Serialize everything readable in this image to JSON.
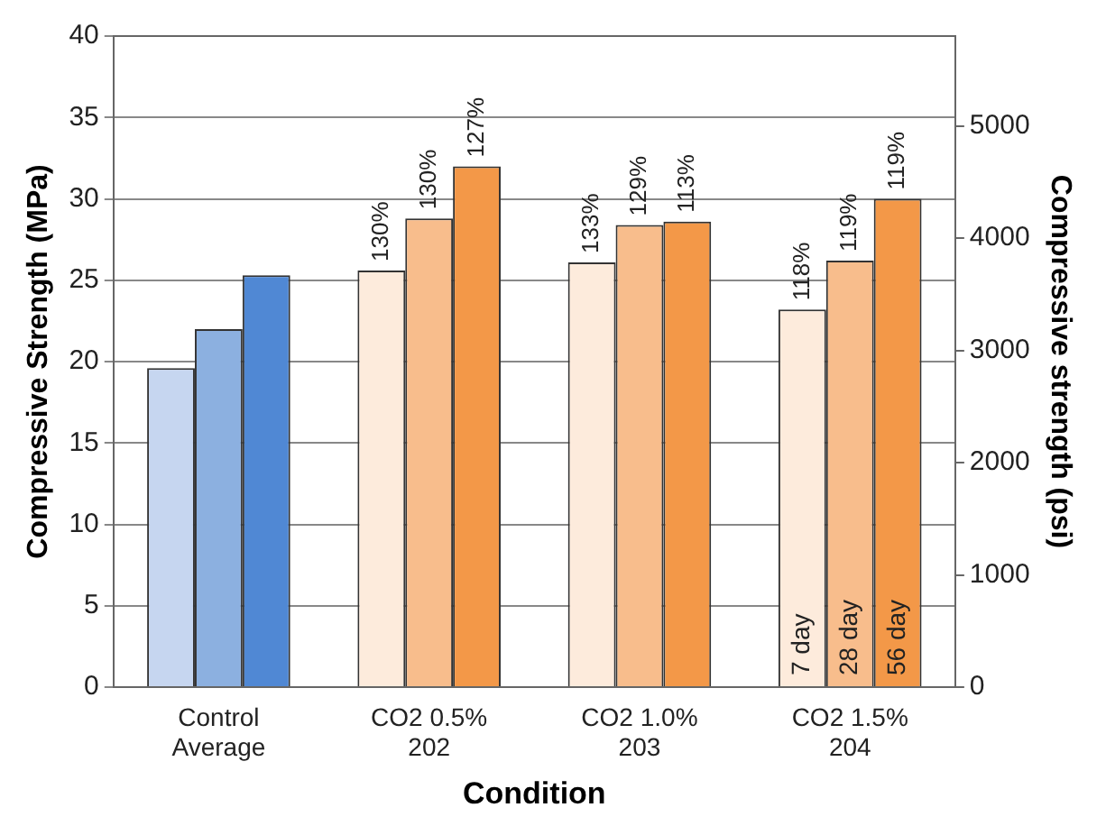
{
  "chart_data": {
    "type": "bar",
    "xlabel": "Condition",
    "ylabel": "Compressive Strength (MPa)",
    "y2label": "Compressive strength (psi)",
    "categories": [
      "Control Average",
      "CO2 0.5% 202",
      "CO2 1.0% 203",
      "CO2 1.5% 204"
    ],
    "series": [
      {
        "name": "7 day",
        "colors": [
          "#c6d6f0",
          "#fdebdc",
          "#fdebdc",
          "#fdebdc"
        ],
        "values": [
          19.6,
          25.6,
          26.1,
          23.2
        ]
      },
      {
        "name": "28 day",
        "colors": [
          "#8cb0e0",
          "#f8bd8c",
          "#f8bd8c",
          "#f8bd8c"
        ],
        "values": [
          22.0,
          28.8,
          28.4,
          26.2
        ]
      },
      {
        "name": "56 day",
        "colors": [
          "#5088d4",
          "#f39848",
          "#f39848",
          "#f39848"
        ],
        "values": [
          25.3,
          32.0,
          28.6,
          30.0
        ]
      }
    ],
    "annotations": [
      "130%",
      "130%",
      "127%",
      "133%",
      "129%",
      "113%",
      "118%",
      "119%",
      "119%"
    ],
    "ylim": [
      0,
      40
    ],
    "yticks": [
      0,
      5,
      10,
      15,
      20,
      25,
      30,
      35,
      40
    ],
    "y2lim": [
      0,
      5801.5
    ],
    "y2ticks": [
      0,
      1000,
      2000,
      3000,
      4000,
      5000
    ],
    "grid": "y",
    "legend": false
  }
}
